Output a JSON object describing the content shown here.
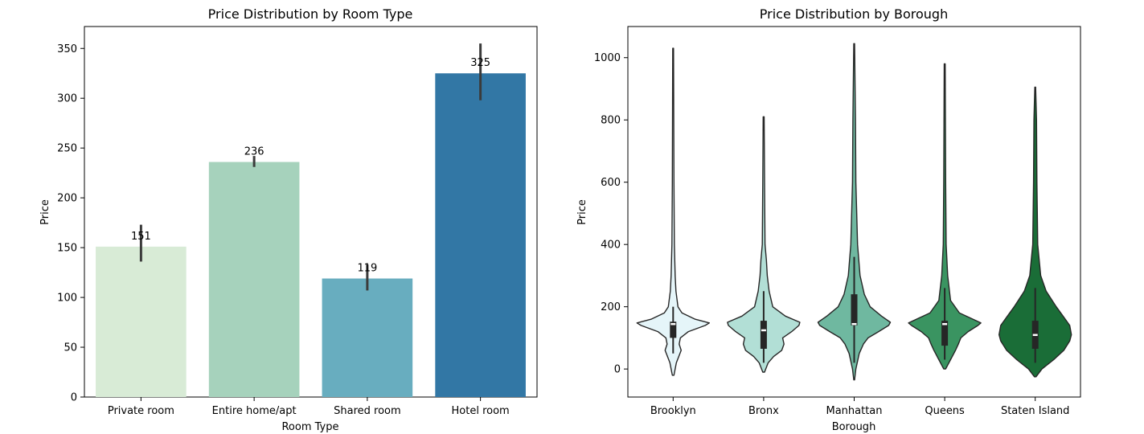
{
  "chart_data": [
    {
      "type": "bar",
      "title": "Price Distribution by Room Type",
      "xlabel": "Room Type",
      "ylabel": "Price",
      "ylim": [
        0,
        372
      ],
      "yticks": [
        0,
        50,
        100,
        150,
        200,
        250,
        300,
        350
      ],
      "categories": [
        "Private room",
        "Entire home/apt",
        "Shared room",
        "Hotel room"
      ],
      "values": [
        151,
        236,
        119,
        325
      ],
      "data_labels": [
        "151",
        "236",
        "119",
        "325"
      ],
      "error_bars": [
        [
          136,
          173
        ],
        [
          231,
          242
        ],
        [
          107,
          133
        ],
        [
          298,
          355
        ]
      ],
      "colors": [
        "#d8ebd6",
        "#a6d2bc",
        "#68adbf",
        "#3277a5"
      ],
      "errorbar_color": "#3b3b3b",
      "grid": false
    },
    {
      "type": "violin",
      "title": "Price Distribution by Borough",
      "xlabel": "Borough",
      "ylabel": "Price",
      "ylim": [
        -90,
        1100
      ],
      "yticks": [
        0,
        200,
        400,
        600,
        800,
        1000
      ],
      "categories": [
        "Brooklyn",
        "Bronx",
        "Manhattan",
        "Queens",
        "Staten Island"
      ],
      "colors": [
        "#e5f5f9",
        "#b2dfd6",
        "#6fb8a0",
        "#3a9461",
        "#1a6d37"
      ],
      "grid": false,
      "series": [
        {
          "name": "Brooklyn",
          "min": -20,
          "max": 1030,
          "q1": 100,
          "median": 145,
          "q3": 152,
          "whisker_low": 50,
          "whisker_high": 200,
          "profile": [
            [
              -20,
              2
            ],
            [
              20,
              8
            ],
            [
              60,
              20
            ],
            [
              80,
              15
            ],
            [
              100,
              18
            ],
            [
              120,
              38
            ],
            [
              140,
              80
            ],
            [
              148,
              90
            ],
            [
              160,
              55
            ],
            [
              180,
              22
            ],
            [
              200,
              12
            ],
            [
              250,
              7
            ],
            [
              300,
              5
            ],
            [
              400,
              3
            ],
            [
              600,
              2
            ],
            [
              1030,
              1
            ]
          ]
        },
        {
          "name": "Bronx",
          "min": -10,
          "max": 810,
          "q1": 65,
          "median": 125,
          "q3": 155,
          "whisker_low": 20,
          "whisker_high": 250,
          "profile": [
            [
              -10,
              2
            ],
            [
              20,
              10
            ],
            [
              40,
              22
            ],
            [
              60,
              40
            ],
            [
              80,
              45
            ],
            [
              100,
              42
            ],
            [
              120,
              62
            ],
            [
              140,
              78
            ],
            [
              150,
              80
            ],
            [
              170,
              48
            ],
            [
              200,
              20
            ],
            [
              250,
              12
            ],
            [
              300,
              8
            ],
            [
              350,
              6
            ],
            [
              400,
              3
            ],
            [
              600,
              2
            ],
            [
              810,
              1
            ]
          ]
        },
        {
          "name": "Manhattan",
          "min": -35,
          "max": 1045,
          "q1": 140,
          "median": 145,
          "q3": 240,
          "whisker_low": 20,
          "whisker_high": 360,
          "profile": [
            [
              -35,
              1
            ],
            [
              0,
              4
            ],
            [
              50,
              12
            ],
            [
              80,
              22
            ],
            [
              100,
              33
            ],
            [
              120,
              58
            ],
            [
              140,
              82
            ],
            [
              150,
              86
            ],
            [
              170,
              65
            ],
            [
              200,
              38
            ],
            [
              240,
              24
            ],
            [
              300,
              14
            ],
            [
              400,
              8
            ],
            [
              600,
              4
            ],
            [
              800,
              3
            ],
            [
              1045,
              1
            ]
          ]
        },
        {
          "name": "Queens",
          "min": 0,
          "max": 980,
          "q1": 75,
          "median": 145,
          "q3": 155,
          "whisker_low": 30,
          "whisker_high": 260,
          "profile": [
            [
              0,
              2
            ],
            [
              30,
              12
            ],
            [
              60,
              22
            ],
            [
              80,
              28
            ],
            [
              100,
              33
            ],
            [
              120,
              48
            ],
            [
              140,
              68
            ],
            [
              148,
              74
            ],
            [
              160,
              58
            ],
            [
              180,
              30
            ],
            [
              220,
              12
            ],
            [
              300,
              6
            ],
            [
              400,
              3
            ],
            [
              600,
              2
            ],
            [
              980,
              1
            ]
          ]
        },
        {
          "name": "Staten Island",
          "min": -25,
          "max": 905,
          "q1": 65,
          "median": 110,
          "q3": 155,
          "whisker_low": 20,
          "whisker_high": 260,
          "profile": [
            [
              -25,
              2
            ],
            [
              0,
              16
            ],
            [
              30,
              44
            ],
            [
              60,
              68
            ],
            [
              90,
              82
            ],
            [
              110,
              86
            ],
            [
              140,
              82
            ],
            [
              170,
              66
            ],
            [
              200,
              50
            ],
            [
              250,
              26
            ],
            [
              300,
              13
            ],
            [
              400,
              6
            ],
            [
              600,
              4
            ],
            [
              800,
              3
            ],
            [
              905,
              1
            ]
          ]
        }
      ]
    }
  ]
}
